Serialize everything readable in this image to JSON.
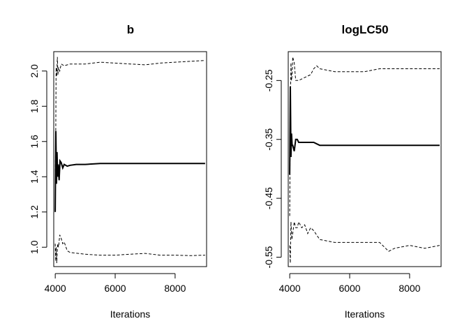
{
  "chart_data": [
    {
      "type": "line",
      "title": "b",
      "xlabel": "Iterations",
      "ylabel": "",
      "xlim": [
        3950,
        9050
      ],
      "ylim": [
        0.89,
        2.11
      ],
      "x_ticks": [
        4000,
        6000,
        8000
      ],
      "x_tick_labels": [
        "4000",
        "6000",
        "8000"
      ],
      "y_ticks": [
        1.0,
        1.2,
        1.4,
        1.6,
        1.8,
        2.0
      ],
      "y_tick_labels": [
        "1.0",
        "1.2",
        "1.4",
        "1.6",
        "1.8",
        "2.0"
      ],
      "grid": false,
      "series": [
        {
          "style": "solid",
          "x": [
            4000,
            4020,
            4040,
            4060,
            4080,
            4100,
            4130,
            4160,
            4200,
            4250,
            4300,
            4400,
            4500,
            4700,
            5000,
            5500,
            6000,
            7000,
            8000,
            9000
          ],
          "y": [
            1.2,
            1.66,
            1.36,
            1.54,
            1.4,
            1.47,
            1.38,
            1.49,
            1.48,
            1.45,
            1.47,
            1.46,
            1.465,
            1.47,
            1.47,
            1.475,
            1.475,
            1.475,
            1.475,
            1.475
          ]
        },
        {
          "style": "dashed",
          "x": [
            4000,
            4015,
            4030,
            4050,
            4070,
            4090,
            4110,
            4150,
            4200,
            4300,
            4500,
            5000,
            5500,
            6000,
            6500,
            7000,
            7500,
            8000,
            8500,
            9000
          ],
          "y": [
            1.43,
            1.6,
            2.02,
            1.97,
            2.08,
            1.98,
            2.02,
            2.0,
            2.04,
            2.03,
            2.04,
            2.04,
            2.05,
            2.045,
            2.04,
            2.035,
            2.045,
            2.05,
            2.055,
            2.06
          ]
        },
        {
          "style": "dashed",
          "x": [
            4000,
            4015,
            4030,
            4050,
            4080,
            4110,
            4150,
            4200,
            4250,
            4300,
            4400,
            4500,
            5000,
            5500,
            6000,
            6500,
            7000,
            7500,
            8000,
            8500,
            9000
          ],
          "y": [
            1.02,
            0.92,
            1.0,
            0.91,
            1.02,
            1.0,
            1.07,
            1.05,
            1.02,
            1.03,
            0.98,
            0.97,
            0.96,
            0.955,
            0.955,
            0.96,
            0.965,
            0.955,
            0.955,
            0.952,
            0.955
          ]
        }
      ]
    },
    {
      "type": "line",
      "title": "logLC50",
      "xlabel": "Iterations",
      "ylabel": "",
      "xlim": [
        3950,
        9050
      ],
      "ylim": [
        -0.566,
        -0.201
      ],
      "x_ticks": [
        4000,
        6000,
        8000
      ],
      "x_tick_labels": [
        "4000",
        "6000",
        "8000"
      ],
      "y_ticks": [
        -0.55,
        -0.45,
        -0.35,
        -0.25
      ],
      "y_tick_labels": [
        "-0.55",
        "-0.45",
        "-0.35",
        "-0.25"
      ],
      "grid": false,
      "series": [
        {
          "style": "solid",
          "x": [
            4000,
            4020,
            4040,
            4060,
            4080,
            4100,
            4150,
            4200,
            4250,
            4300,
            4400,
            4600,
            4800,
            5000,
            5500,
            6000,
            7000,
            8000,
            9000
          ],
          "y": [
            -0.41,
            -0.26,
            -0.38,
            -0.34,
            -0.36,
            -0.36,
            -0.37,
            -0.35,
            -0.35,
            -0.355,
            -0.355,
            -0.355,
            -0.355,
            -0.36,
            -0.36,
            -0.36,
            -0.36,
            -0.36,
            -0.36
          ]
        },
        {
          "style": "dashed",
          "x": [
            4000,
            4020,
            4040,
            4060,
            4080,
            4100,
            4150,
            4200,
            4300,
            4500,
            4700,
            4800,
            4900,
            5000,
            5500,
            6000,
            6500,
            7000,
            7500,
            8000,
            8500,
            9000
          ],
          "y": [
            -0.48,
            -0.3,
            -0.22,
            -0.25,
            -0.24,
            -0.21,
            -0.22,
            -0.25,
            -0.25,
            -0.245,
            -0.24,
            -0.23,
            -0.225,
            -0.23,
            -0.235,
            -0.235,
            -0.235,
            -0.23,
            -0.23,
            -0.23,
            -0.23,
            -0.23
          ]
        },
        {
          "style": "dashed",
          "x": [
            4000,
            4020,
            4040,
            4070,
            4100,
            4150,
            4200,
            4250,
            4300,
            4400,
            4500,
            4600,
            4700,
            4800,
            5000,
            5500,
            6000,
            6500,
            7000,
            7300,
            7500,
            8000,
            8500,
            9000
          ],
          "y": [
            -0.53,
            -0.56,
            -0.49,
            -0.52,
            -0.51,
            -0.49,
            -0.5,
            -0.5,
            -0.49,
            -0.5,
            -0.495,
            -0.51,
            -0.5,
            -0.505,
            -0.52,
            -0.525,
            -0.525,
            -0.525,
            -0.525,
            -0.54,
            -0.535,
            -0.53,
            -0.535,
            -0.53
          ]
        }
      ]
    }
  ]
}
